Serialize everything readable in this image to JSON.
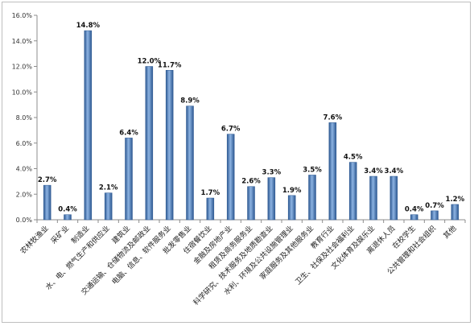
{
  "chart_data": {
    "type": "bar",
    "title": "",
    "xlabel": "",
    "ylabel": "",
    "ylim": [
      0,
      16
    ],
    "yticks": [
      "0.0%",
      "2.0%",
      "4.0%",
      "6.0%",
      "8.0%",
      "10.0%",
      "12.0%",
      "14.0%",
      "16.0%"
    ],
    "grid": false,
    "legend": "none",
    "bar_color": "#4a7ebb",
    "bar_color_light": "#8db3e2",
    "bar_color_dark": "#2c5891",
    "categories": [
      "农林牧渔业",
      "采矿业",
      "制造业",
      "水、电、燃气生产和供应业",
      "建筑业",
      "交通运输、仓储物流及邮政业",
      "电脑、信息、软件服务业",
      "批发零售业",
      "住宿餐饮业",
      "金融及房地产业",
      "租赁及商务服务业",
      "科学研究、技术服务及地质勘查业",
      "水利、环境及公共设施管理业",
      "家庭服务及其他服务业",
      "教育行业",
      "卫生、社保及社会福利业",
      "文化体育及娱乐业",
      "离退休人员",
      "在校学生",
      "公共管理和社会组织",
      "其他"
    ],
    "values": [
      2.7,
      0.4,
      14.8,
      2.1,
      6.4,
      12.0,
      11.7,
      8.9,
      1.7,
      6.7,
      2.6,
      3.3,
      1.9,
      3.5,
      7.6,
      4.5,
      3.4,
      3.4,
      0.4,
      0.7,
      1.2
    ],
    "value_labels": [
      "2.7%",
      "0.4%",
      "14.8%",
      "2.1%",
      "6.4%",
      "12.0%",
      "11.7%",
      "8.9%",
      "1.7%",
      "6.7%",
      "2.6%",
      "3.3%",
      "1.9%",
      "3.5%",
      "7.6%",
      "4.5%",
      "3.4%",
      "3.4%",
      "0.4%",
      "0.7%",
      "1.2%"
    ]
  }
}
